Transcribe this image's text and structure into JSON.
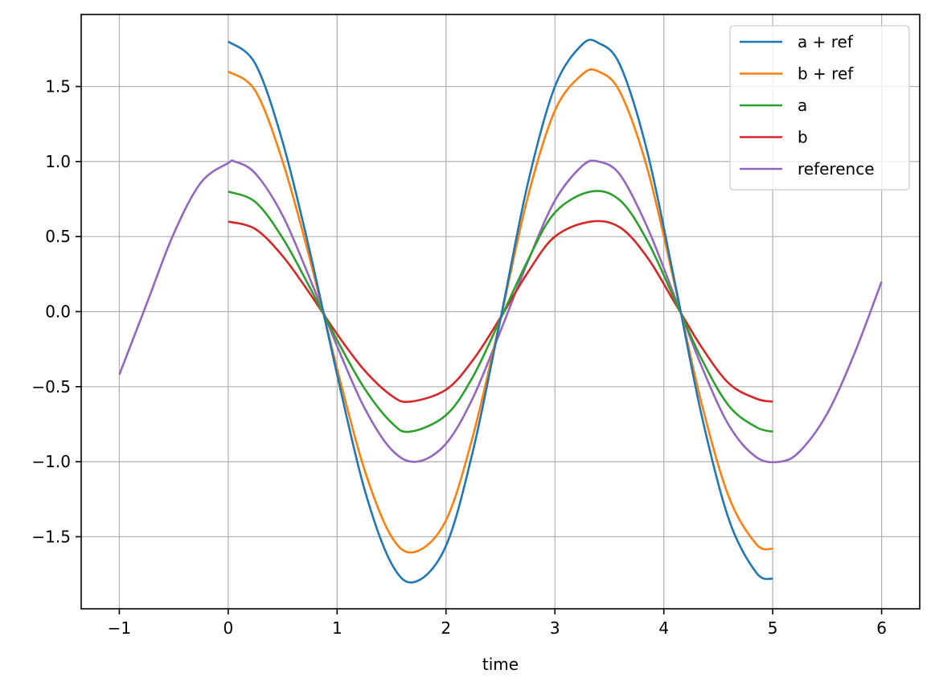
{
  "chart_data": {
    "type": "line",
    "title": "",
    "xlabel": "time",
    "ylabel": "",
    "xlim": [
      -1.35,
      6.35
    ],
    "ylim": [
      -1.98,
      1.98
    ],
    "grid": true,
    "legend_position": "top-right",
    "x_ticks": [
      -1,
      0,
      1,
      2,
      3,
      4,
      5,
      6
    ],
    "x_tick_labels": [
      "−1",
      "0",
      "1",
      "2",
      "3",
      "4",
      "5",
      "6"
    ],
    "y_ticks": [
      -1.5,
      -1.0,
      -0.5,
      0.0,
      0.5,
      1.0,
      1.5
    ],
    "y_tick_labels": [
      "−1.5",
      "−1.0",
      "−0.5",
      "0.0",
      "0.5",
      "1.0",
      "1.5"
    ],
    "series": [
      {
        "name": "a + ref",
        "color": "#1f77b4",
        "x": [
          0.0,
          0.25,
          0.5,
          0.75,
          1.0,
          1.25,
          1.5,
          1.72,
          2.0,
          2.25,
          2.5,
          2.75,
          3.0,
          3.25,
          3.4,
          3.6,
          3.85,
          4.1,
          4.35,
          4.6,
          4.85,
          5.0
        ],
        "y": [
          1.8,
          1.65,
          1.13,
          0.4,
          -0.42,
          -1.18,
          -1.68,
          -1.8,
          -1.56,
          -0.92,
          -0.05,
          0.85,
          1.5,
          1.78,
          1.79,
          1.64,
          1.06,
          0.2,
          -0.7,
          -1.39,
          -1.74,
          -1.78
        ]
      },
      {
        "name": "b + ref",
        "color": "#ff7f0e",
        "x": [
          0.0,
          0.25,
          0.5,
          0.75,
          1.0,
          1.25,
          1.5,
          1.72,
          2.0,
          2.25,
          2.5,
          2.75,
          3.0,
          3.25,
          3.4,
          3.6,
          3.85,
          4.1,
          4.35,
          4.6,
          4.85,
          5.0
        ],
        "y": [
          1.6,
          1.47,
          1.0,
          0.35,
          -0.38,
          -1.05,
          -1.5,
          -1.6,
          -1.39,
          -0.82,
          -0.05,
          0.76,
          1.34,
          1.58,
          1.6,
          1.46,
          0.95,
          0.18,
          -0.62,
          -1.24,
          -1.55,
          -1.58
        ]
      },
      {
        "name": "a",
        "color": "#2ca02c",
        "x": [
          0.0,
          0.25,
          0.5,
          0.75,
          1.0,
          1.25,
          1.5,
          1.67,
          2.0,
          2.25,
          2.5,
          2.75,
          3.0,
          3.33,
          3.6,
          3.85,
          4.1,
          4.35,
          4.6,
          4.85,
          5.0
        ],
        "y": [
          0.8,
          0.73,
          0.49,
          0.16,
          -0.19,
          -0.51,
          -0.74,
          -0.8,
          -0.69,
          -0.43,
          -0.05,
          0.34,
          0.66,
          0.8,
          0.74,
          0.47,
          0.08,
          -0.32,
          -0.63,
          -0.77,
          -0.8
        ]
      },
      {
        "name": "b",
        "color": "#d62728",
        "x": [
          0.0,
          0.25,
          0.5,
          0.75,
          1.0,
          1.25,
          1.5,
          1.67,
          2.0,
          2.25,
          2.5,
          2.75,
          3.0,
          3.33,
          3.6,
          3.85,
          4.1,
          4.35,
          4.6,
          4.85,
          5.0
        ],
        "y": [
          0.6,
          0.55,
          0.37,
          0.12,
          -0.15,
          -0.39,
          -0.56,
          -0.6,
          -0.52,
          -0.32,
          -0.04,
          0.26,
          0.5,
          0.6,
          0.56,
          0.36,
          0.06,
          -0.24,
          -0.48,
          -0.58,
          -0.6
        ]
      },
      {
        "name": "reference",
        "color": "#9467bd",
        "x": [
          -1.0,
          -0.75,
          -0.5,
          -0.25,
          0.0,
          0.06,
          0.25,
          0.5,
          0.75,
          1.0,
          1.25,
          1.5,
          1.73,
          2.0,
          2.25,
          2.5,
          2.75,
          3.0,
          3.25,
          3.4,
          3.6,
          3.85,
          4.1,
          4.35,
          4.6,
          4.85,
          5.07,
          5.25,
          5.5,
          5.75,
          6.0
        ],
        "y": [
          -0.42,
          0.05,
          0.52,
          0.86,
          0.99,
          1.0,
          0.92,
          0.64,
          0.22,
          -0.23,
          -0.64,
          -0.92,
          -1.0,
          -0.88,
          -0.57,
          -0.13,
          0.33,
          0.74,
          0.97,
          1.0,
          0.91,
          0.56,
          0.1,
          -0.37,
          -0.76,
          -0.97,
          -1.0,
          -0.93,
          -0.68,
          -0.28,
          0.2
        ]
      }
    ]
  }
}
